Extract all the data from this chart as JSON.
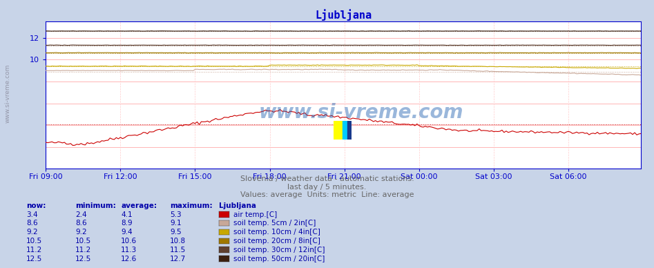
{
  "title": "Ljubljana",
  "title_color": "#0000cc",
  "background_color": "#c8d4e8",
  "plot_bg_color": "#ffffff",
  "grid_color_h": "#ffaaaa",
  "grid_color_v": "#ffcccc",
  "figsize": [
    9.47,
    3.88
  ],
  "dpi": 100,
  "xlim": [
    0,
    287
  ],
  "ylim": [
    0,
    13.5
  ],
  "ytick_vals": [
    10,
    12
  ],
  "xtick_labels": [
    "Fri 09:00",
    "Fri 12:00",
    "Fri 15:00",
    "Fri 18:00",
    "Fri 21:00",
    "Sat 00:00",
    "Sat 03:00",
    "Sat 06:00"
  ],
  "xtick_positions": [
    0,
    36,
    72,
    108,
    144,
    180,
    216,
    252
  ],
  "subtitle1": "Slovenia / weather data - automatic stations.",
  "subtitle2": "last day / 5 minutes.",
  "subtitle3": "Values: average  Units: metric  Line: average",
  "subtitle_color": "#666666",
  "watermark_text": "www.si-vreme.com",
  "series_keys": [
    "air_temp",
    "soil_5cm",
    "soil_10cm",
    "soil_20cm",
    "soil_30cm",
    "soil_50cm"
  ],
  "series": {
    "air_temp": {
      "color": "#cc0000",
      "avg": 4.1,
      "min": 2.4,
      "max": 5.3,
      "now": 3.4,
      "label": "air temp.[C]"
    },
    "soil_5cm": {
      "color": "#c8a898",
      "avg": 8.9,
      "min": 8.6,
      "max": 9.1,
      "now": 8.6,
      "label": "soil temp. 5cm / 2in[C]"
    },
    "soil_10cm": {
      "color": "#c8a800",
      "avg": 9.4,
      "min": 9.2,
      "max": 9.5,
      "now": 9.2,
      "label": "soil temp. 10cm / 4in[C]"
    },
    "soil_20cm": {
      "color": "#a07800",
      "avg": 10.6,
      "min": 10.5,
      "max": 10.8,
      "now": 10.5,
      "label": "soil temp. 20cm / 8in[C]"
    },
    "soil_30cm": {
      "color": "#604030",
      "avg": 11.3,
      "min": 11.2,
      "max": 11.5,
      "now": 11.2,
      "label": "soil temp. 30cm / 12in[C]"
    },
    "soil_50cm": {
      "color": "#3c2010",
      "avg": 12.6,
      "min": 12.5,
      "max": 12.7,
      "now": 12.5,
      "label": "soil temp. 50cm / 20in[C]"
    }
  },
  "table_headers": [
    "now:",
    "minimum:",
    "average:",
    "maximum:",
    "Ljubljana"
  ],
  "table_rows": [
    [
      "3.4",
      "2.4",
      "4.1",
      "5.3",
      "air temp.[C]"
    ],
    [
      "8.6",
      "8.6",
      "8.9",
      "9.1",
      "soil temp. 5cm / 2in[C]"
    ],
    [
      "9.2",
      "9.2",
      "9.4",
      "9.5",
      "soil temp. 10cm / 4in[C]"
    ],
    [
      "10.5",
      "10.5",
      "10.6",
      "10.8",
      "soil temp. 20cm / 8in[C]"
    ],
    [
      "11.2",
      "11.2",
      "11.3",
      "11.5",
      "soil temp. 30cm / 12in[C]"
    ],
    [
      "12.5",
      "12.5",
      "12.6",
      "12.7",
      "soil temp. 50cm / 20in[C]"
    ]
  ],
  "table_row_colors": [
    "#cc0000",
    "#c8a898",
    "#c8a800",
    "#a07800",
    "#604030",
    "#3c2010"
  ]
}
